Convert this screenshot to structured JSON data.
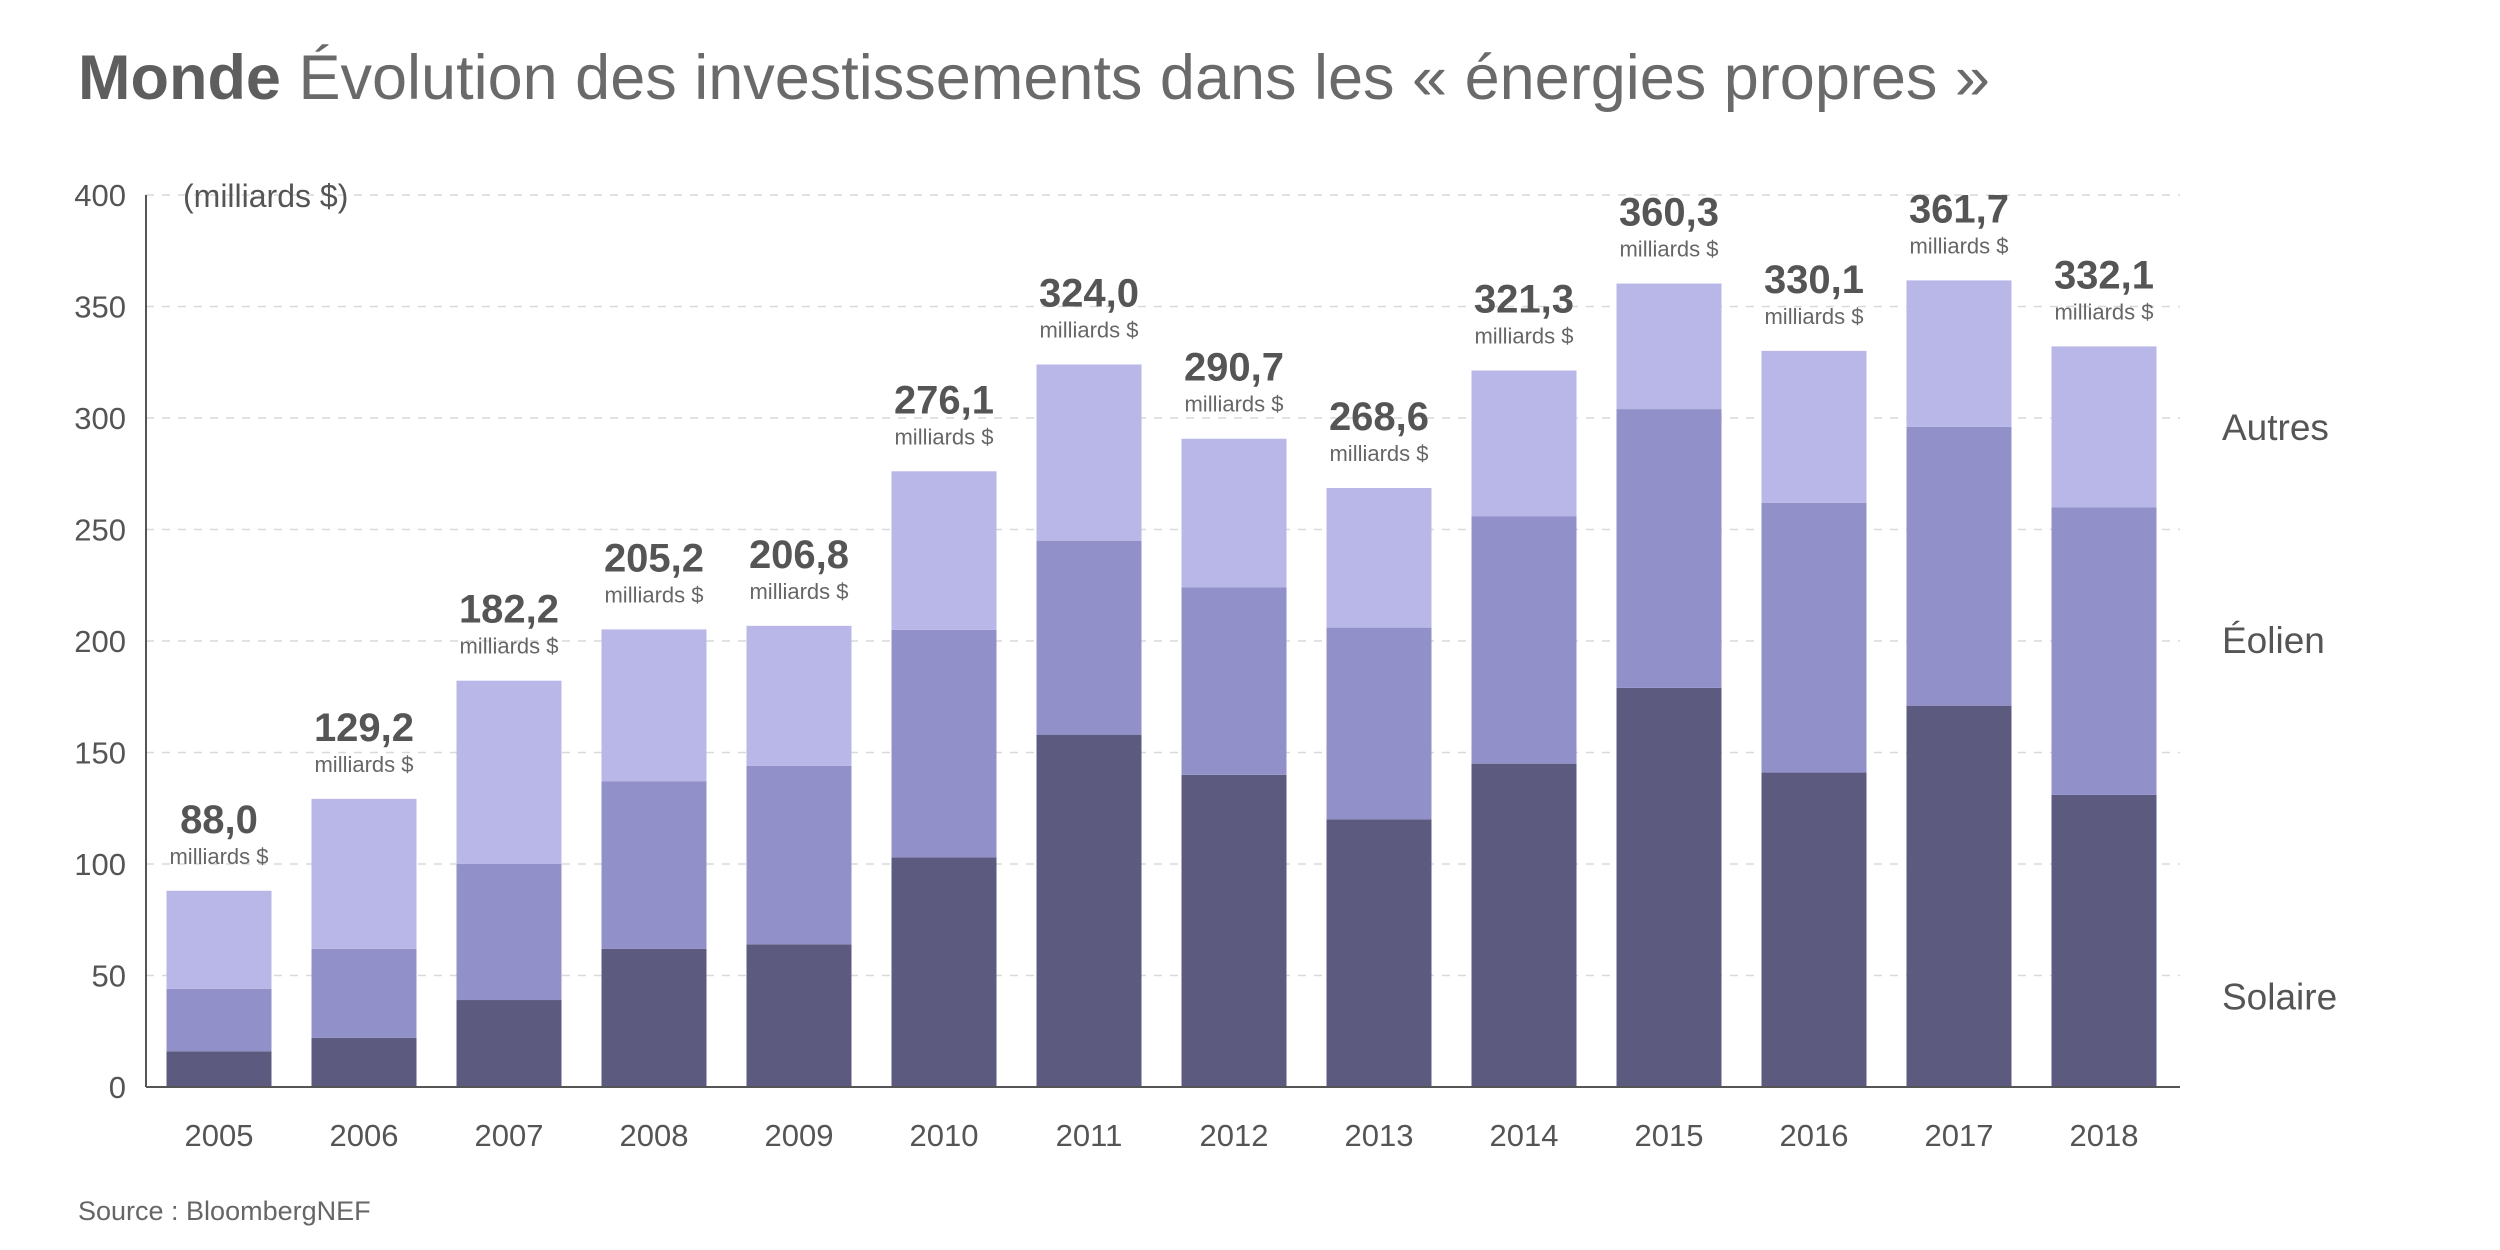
{
  "header": {
    "title_bold": "Monde",
    "title_rest": "Évolution des investissements dans les « énergies propres »"
  },
  "footer": {
    "source": "Source : BloombergNEF"
  },
  "colors": {
    "solaire": "#5d5a80",
    "eolien": "#9190c9",
    "autres": "#b8b7e8",
    "grid": "#d9d9d9",
    "axis": "#555555"
  },
  "chart_data": {
    "type": "bar",
    "stacked": true,
    "title": "Monde Évolution des investissements dans les « énergies propres »",
    "unit_label": "(milliards $)",
    "xlabel": "",
    "ylabel": "",
    "ylim": [
      0,
      400
    ],
    "yticks": [
      0,
      50,
      100,
      150,
      200,
      250,
      300,
      350,
      400
    ],
    "grid": true,
    "categories": [
      "2005",
      "2006",
      "2007",
      "2008",
      "2009",
      "2010",
      "2011",
      "2012",
      "2013",
      "2014",
      "2015",
      "2016",
      "2017",
      "2018"
    ],
    "series": [
      {
        "name": "Solaire",
        "color": "#5d5a80",
        "values": [
          16,
          22,
          39,
          62,
          64,
          103,
          158,
          140,
          120,
          145,
          179,
          141,
          171,
          131
        ]
      },
      {
        "name": "Éolien",
        "color": "#9190c9",
        "values": [
          28,
          40,
          61,
          75,
          80,
          102,
          87,
          84,
          86,
          111,
          125,
          121,
          125,
          129
        ]
      },
      {
        "name": "Autres",
        "color": "#b8b7e8",
        "values": [
          44,
          67.2,
          82.2,
          68.2,
          62.8,
          71.1,
          79,
          66.7,
          62.6,
          65.3,
          56.3,
          68.1,
          65.7,
          72.1
        ]
      }
    ],
    "totals": [
      88.0,
      129.2,
      182.2,
      205.2,
      206.8,
      276.1,
      324.0,
      290.7,
      268.6,
      321.3,
      360.3,
      330.1,
      361.7,
      332.1
    ],
    "total_labels": [
      "88,0",
      "129,2",
      "182,2",
      "205,2",
      "206,8",
      "276,1",
      "324,0",
      "290,7",
      "268,6",
      "321,3",
      "360,3",
      "330,1",
      "361,7",
      "332,1"
    ],
    "total_unit": "milliards $",
    "legend": [
      "Autres",
      "Éolien",
      "Solaire"
    ],
    "legend_position": "right"
  }
}
